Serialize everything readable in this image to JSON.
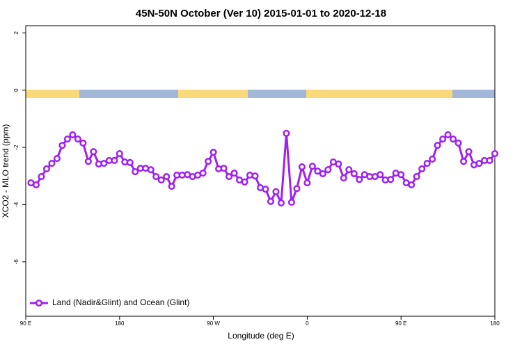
{
  "chart_data": {
    "type": "line",
    "title": "45N-50N October (Ver 10)   2015-01-01 to 2020-12-18",
    "xlabel": "Longitude (deg E)",
    "ylabel": "XCO2 - MLO trend (ppm)",
    "xlim": [
      90,
      540
    ],
    "xticks": [
      {
        "value": 90,
        "label": "90 E"
      },
      180,
      {
        "value": 270,
        "label": "90 W"
      },
      {
        "value": 360,
        "label": "0"
      },
      {
        "value": 450,
        "label": "90 E"
      },
      {
        "value": 540,
        "label": "180"
      }
    ],
    "ylim": [
      -7.9,
      2.25
    ],
    "yticks": [
      2,
      0,
      -2,
      -4,
      -6
    ],
    "legend": "bottom-left",
    "x": [
      95,
      100,
      105,
      110,
      115,
      120,
      125,
      130,
      135,
      140,
      145,
      150,
      155,
      160,
      165,
      170,
      175,
      180,
      185,
      190,
      195,
      200,
      205,
      210,
      215,
      220,
      225,
      230,
      235,
      240,
      245,
      250,
      255,
      260,
      265,
      270,
      275,
      280,
      285,
      290,
      295,
      300,
      305,
      310,
      315,
      320,
      325,
      330,
      335,
      340,
      345,
      350,
      355,
      360,
      365,
      370,
      375,
      380,
      385,
      390,
      395,
      400,
      405,
      410,
      415,
      420,
      425,
      430,
      435,
      440,
      445,
      450,
      455,
      460,
      465,
      470,
      475,
      480,
      485,
      490,
      495,
      500,
      505,
      510,
      515,
      520,
      525,
      530,
      535,
      540
    ],
    "series": [
      {
        "name": "Land (Nadir&Glint) and Ocean (Glint)",
        "color": "#a020f0",
        "values": [
          -3.24,
          -3.31,
          -3.02,
          -2.75,
          -2.56,
          -2.39,
          -1.93,
          -1.71,
          -1.56,
          -1.71,
          -1.85,
          -2.49,
          -2.15,
          -2.58,
          -2.56,
          -2.46,
          -2.46,
          -2.22,
          -2.51,
          -2.53,
          -2.85,
          -2.73,
          -2.73,
          -2.78,
          -3.02,
          -3.14,
          -3.02,
          -3.36,
          -2.97,
          -2.97,
          -2.95,
          -3.02,
          -2.97,
          -2.9,
          -2.49,
          -2.17,
          -2.75,
          -2.73,
          -3.02,
          -2.9,
          -3.14,
          -3.21,
          -2.97,
          -3.0,
          -3.41,
          -3.46,
          -3.89,
          -3.55,
          -3.94,
          -1.51,
          -3.92,
          -3.44,
          -2.68,
          -3.24,
          -2.66,
          -2.83,
          -2.92,
          -2.78,
          -2.51,
          -2.58,
          -3.07,
          -2.78,
          -2.92,
          -3.12,
          -2.95,
          -3.02,
          -3.02,
          -2.95,
          -3.14,
          -3.12,
          -2.9,
          -2.95,
          -3.24,
          -3.31,
          -3.02,
          -2.75,
          -2.56,
          -2.41,
          -1.93,
          -1.71,
          -1.56,
          -1.71,
          -1.85,
          -2.49,
          -2.15,
          -2.61,
          -2.56,
          -2.46,
          -2.46,
          -2.22
        ]
      }
    ]
  }
}
